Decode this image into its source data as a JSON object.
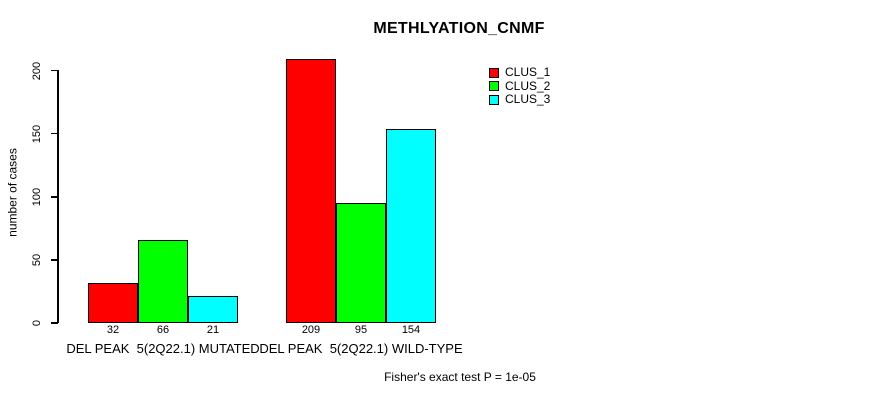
{
  "title": "METHLYATION_CNMF",
  "y_axis": {
    "label": "number of cases",
    "ticks": [
      0,
      50,
      100,
      150,
      200
    ]
  },
  "x_axis": {
    "group_labels": [
      "DEL PEAK  5(2Q22.1) MUTATED",
      "DEL PEAK  5(2Q22.1) WILD-TYPE"
    ]
  },
  "legend": {
    "items": [
      {
        "label": "CLUS_1",
        "color": "#ff0000"
      },
      {
        "label": "CLUS_2",
        "color": "#00ff00"
      },
      {
        "label": "CLUS_3",
        "color": "#00ffff"
      }
    ]
  },
  "footer": "Fisher's exact test P = 1e-05",
  "chart_data": {
    "type": "bar",
    "title": "METHLYATION_CNMF",
    "xlabel": "",
    "ylabel": "number of cases",
    "ylim": [
      0,
      200
    ],
    "yticks": [
      0,
      50,
      100,
      150,
      200
    ],
    "grid": false,
    "legend_position": "top-right",
    "categories": [
      "DEL PEAK  5(2Q22.1) MUTATED",
      "DEL PEAK  5(2Q22.1) WILD-TYPE"
    ],
    "series": [
      {
        "name": "CLUS_1",
        "color": "#ff0000",
        "values": [
          32,
          209
        ]
      },
      {
        "name": "CLUS_2",
        "color": "#00ff00",
        "values": [
          66,
          95
        ]
      },
      {
        "name": "CLUS_3",
        "color": "#00ffff",
        "values": [
          21,
          154
        ]
      }
    ],
    "bar_value_labels": [
      [
        32,
        66,
        21
      ],
      [
        209,
        95,
        154
      ]
    ],
    "annotation": "Fisher's exact test P = 1e-05"
  }
}
